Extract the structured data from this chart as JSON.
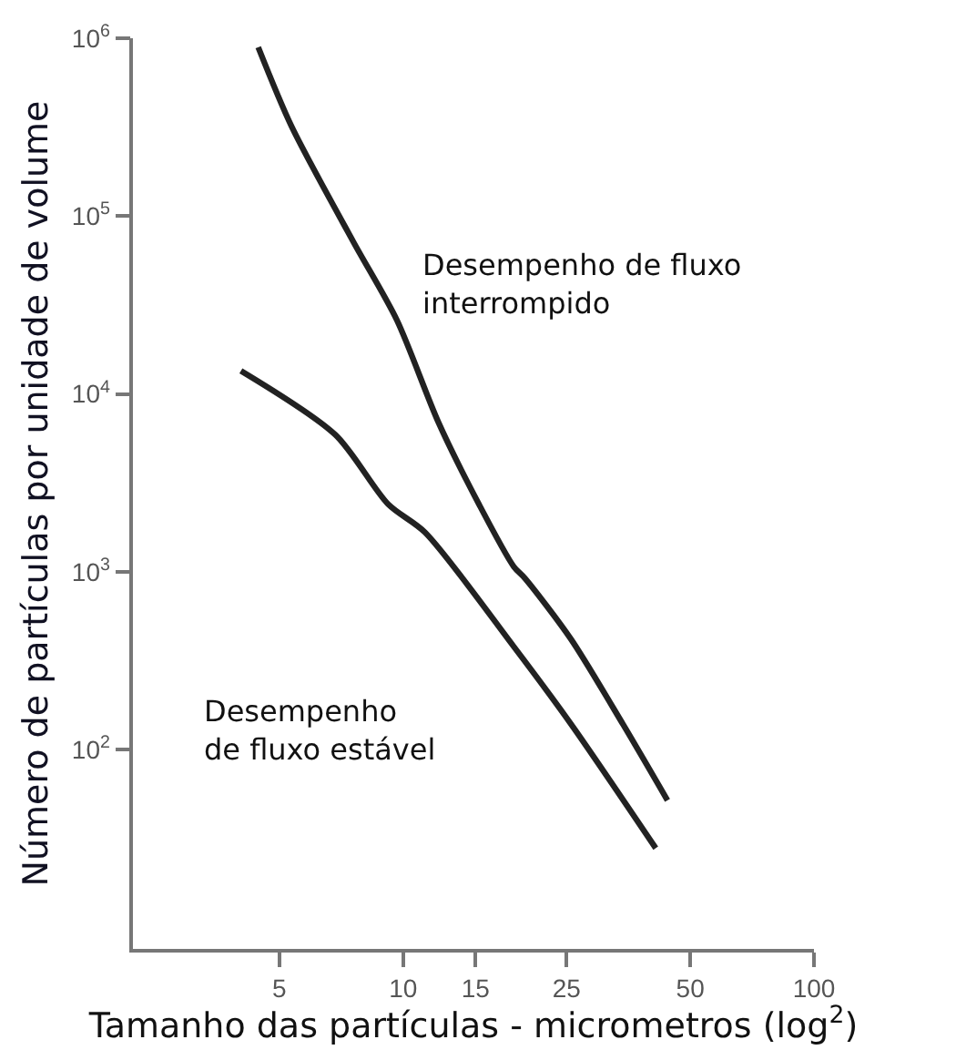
{
  "chart_data": {
    "type": "line",
    "xlabel": "Tamanho das partículas - micrometros (log$^{2}$)",
    "ylabel": "Número de partículas por unidade de volume",
    "series": [
      {
        "color": "#222222",
        "x": [
          4.44,
          5.35,
          7.56,
          9.66,
          12.2,
          15.3,
          18.6,
          19.8,
          25.6,
          34.3,
          44.0
        ],
        "values": [
          890000,
          320000,
          72000,
          26000,
          6900,
          2400,
          1070,
          920,
          420,
          139,
          52
        ]
      },
      {
        "color": "#222222",
        "x": [
          4.03,
          6.84,
          9.2,
          11.3,
          18.6,
          25.6,
          41.2
        ],
        "values": [
          13500,
          5900,
          2400,
          1670,
          380,
          140,
          28
        ]
      }
    ],
    "annotations": [
      "Desempenho de fluxo\ninterrompido",
      "Desempenho\nde fluxo estável"
    ],
    "log": "xy",
    "xlim": [
      2.2,
      100
    ],
    "xticks": [
      5,
      10,
      15,
      25,
      50,
      100
    ],
    "ylim": [
      7.6,
      1000000
    ],
    "yticks": [
      {
        "value": 100,
        "label": "10$^{2}$"
      },
      {
        "value": 1000,
        "label": "10$^{3}$"
      },
      {
        "value": 10000,
        "label": "10$^{4}$"
      },
      {
        "value": 100000,
        "label": "10$^{5}$"
      },
      {
        "value": 1000000,
        "label": "10$^{6}$"
      }
    ],
    "marker": "none",
    "line_style": "solid"
  }
}
